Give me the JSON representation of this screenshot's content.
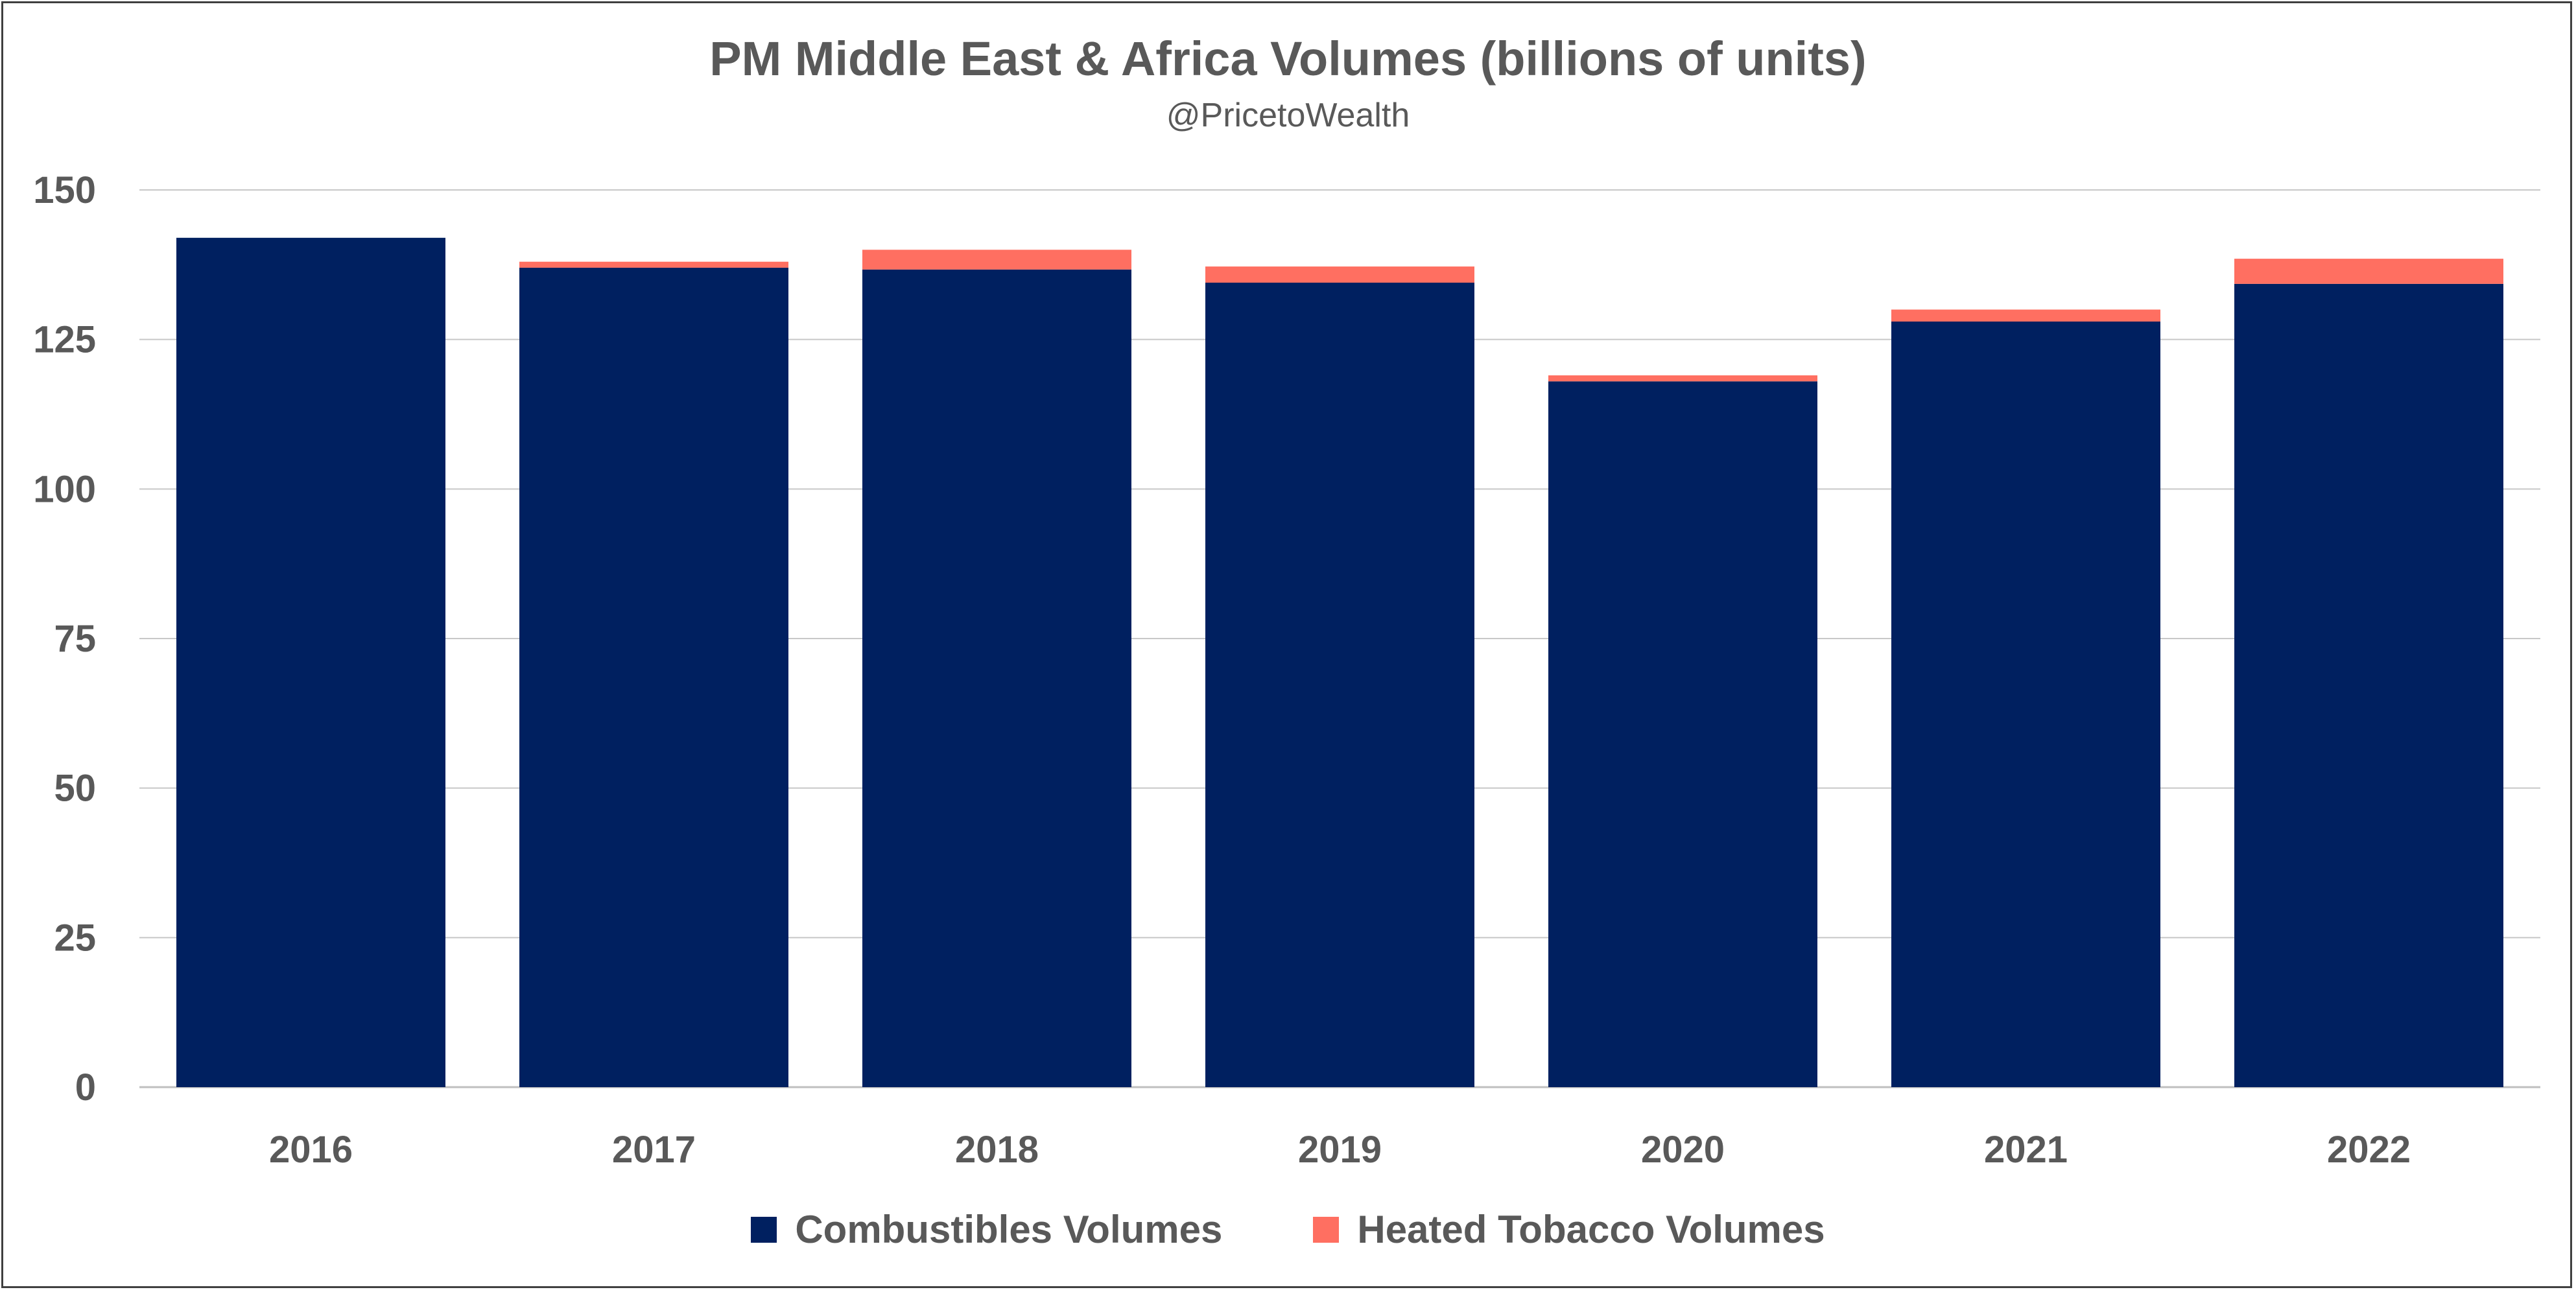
{
  "chart_data": {
    "type": "bar",
    "stacked": true,
    "title": "PM Middle East & Africa Volumes (billions of units)",
    "subtitle": "@PricetoWealth",
    "categories": [
      "2016",
      "2017",
      "2018",
      "2019",
      "2020",
      "2021",
      "2022"
    ],
    "series": [
      {
        "name": "Combustibles Volumes",
        "color": "#002060",
        "values": [
          142,
          137,
          136.7,
          134.5,
          118,
          128,
          134.3
        ]
      },
      {
        "name": "Heated Tobacco Volumes",
        "color": "#FF6F61",
        "values": [
          0,
          1,
          3.3,
          2.7,
          1,
          2,
          4.2
        ]
      }
    ],
    "xlabel": "",
    "ylabel": "",
    "ylim": [
      0,
      150
    ],
    "yticks": [
      0,
      25,
      50,
      75,
      100,
      125,
      150
    ],
    "grid": true,
    "legend": "bottom"
  }
}
